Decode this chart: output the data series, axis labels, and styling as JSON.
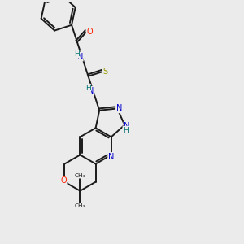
{
  "bg_color": "#ebebeb",
  "bond_color": "#1a1a1a",
  "bond_width": 1.4,
  "dbo": 0.07,
  "figsize": [
    3.0,
    3.0
  ],
  "dpi": 100,
  "N_color": "#0000cc",
  "O_color": "#ff2200",
  "S_color": "#999900",
  "H_color": "#007070",
  "C_color": "#111111",
  "xlim": [
    0,
    10
  ],
  "ylim": [
    0,
    10
  ]
}
